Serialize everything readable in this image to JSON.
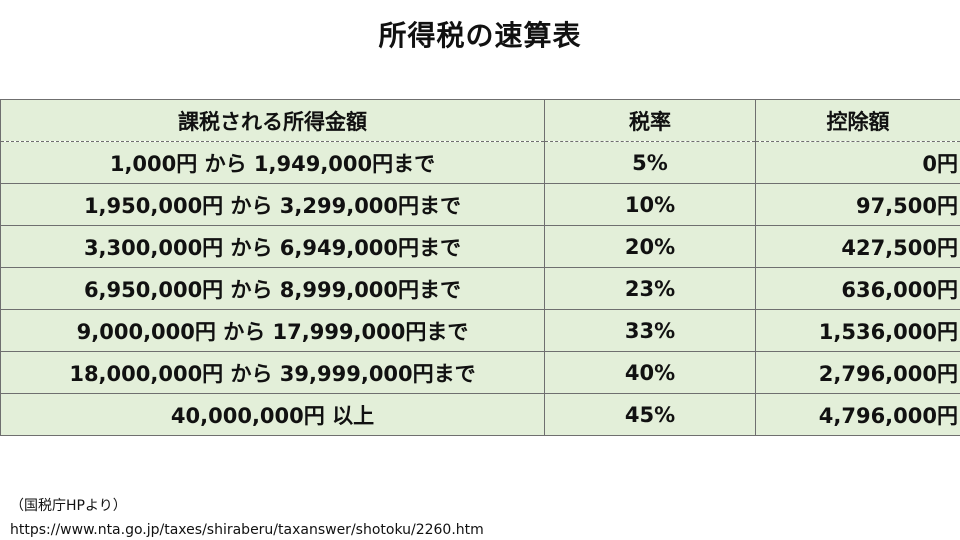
{
  "title": "所得税の速算表",
  "table": {
    "headers": [
      "課税される所得金額",
      "税率",
      "控除額"
    ],
    "rows": [
      {
        "income": "1,000円 から 1,949,000円まで",
        "rate": "5%",
        "deduction": "0円"
      },
      {
        "income": "1,950,000円 から 3,299,000円まで",
        "rate": "10%",
        "deduction": "97,500円"
      },
      {
        "income": "3,300,000円 から 6,949,000円まで",
        "rate": "20%",
        "deduction": "427,500円"
      },
      {
        "income": "6,950,000円 から 8,999,000円まで",
        "rate": "23%",
        "deduction": "636,000円"
      },
      {
        "income": "9,000,000円 から 17,999,000円まで",
        "rate": "33%",
        "deduction": "1,536,000円"
      },
      {
        "income": "18,000,000円 から 39,999,000円まで",
        "rate": "40%",
        "deduction": "2,796,000円"
      },
      {
        "income": "40,000,000円 以上",
        "rate": "45%",
        "deduction": "4,796,000円"
      }
    ]
  },
  "source": {
    "label": "（国税庁HPより）",
    "url": "https://www.nta.go.jp/taxes/shiraberu/taxanswer/shotoku/2260.htm"
  },
  "colors": {
    "cell_background": "#e3efd9",
    "border": "#6f6f6f"
  }
}
